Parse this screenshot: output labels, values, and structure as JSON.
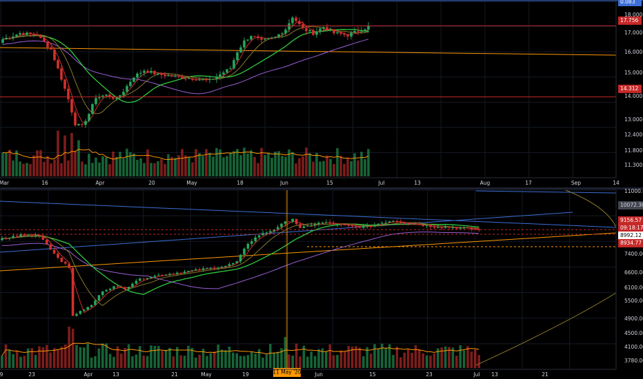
{
  "colors": {
    "background": "#000000",
    "grid": "#141a24",
    "up": "#26a65b",
    "down": "#d0312d",
    "hline": "#c62828",
    "orange": "#ff9800",
    "green_ma": "#2ecc40",
    "purple_ma": "#9c5fd6",
    "blue": "#3d6fd6",
    "axis_text": "#d1d4dc",
    "ma_olive": "#8a7a2a"
  },
  "chart_data": [
    {
      "type": "candlestick",
      "pane": "top",
      "x_ticks": [
        "Mar",
        "16",
        "Apr",
        "20",
        "May",
        "18",
        "Jun",
        "15",
        "Jul",
        "13",
        "Aug",
        "17",
        "Sep",
        "14"
      ],
      "y_ticks": [
        "18.000",
        "17.000",
        "16.000",
        "15.000",
        "14.000",
        "13.000",
        "12.400",
        "11.800",
        "11.300"
      ],
      "price_labels": [
        {
          "id": "current",
          "text": "17.756"
        },
        {
          "id": "support",
          "text": "14.312"
        },
        {
          "id": "top_edge",
          "text": "0.083"
        }
      ],
      "horizontal_levels": [
        17.756,
        14.312
      ],
      "trendline": {
        "from": 16.3,
        "to": 15.9
      },
      "candle_anchors": [
        [
          0,
          17.1
        ],
        [
          5,
          17.4
        ],
        [
          10,
          17.3
        ],
        [
          14,
          16.6
        ],
        [
          17,
          15.2
        ],
        [
          19,
          14.2
        ],
        [
          21,
          13.0
        ],
        [
          23,
          12.9
        ],
        [
          25,
          13.5
        ],
        [
          27,
          14.3
        ],
        [
          30,
          14.4
        ],
        [
          33,
          14.2
        ],
        [
          35,
          14.6
        ],
        [
          38,
          15.3
        ],
        [
          41,
          15.6
        ],
        [
          45,
          15.4
        ],
        [
          50,
          15.3
        ],
        [
          55,
          15.2
        ],
        [
          60,
          15.1
        ],
        [
          63,
          15.4
        ],
        [
          66,
          15.7
        ],
        [
          68,
          16.5
        ],
        [
          70,
          17.0
        ],
        [
          72,
          17.3
        ],
        [
          75,
          17.0
        ],
        [
          79,
          17.2
        ],
        [
          82,
          17.6
        ],
        [
          84,
          18.2
        ],
        [
          87,
          17.6
        ],
        [
          90,
          17.4
        ],
        [
          93,
          17.7
        ],
        [
          96,
          17.4
        ],
        [
          100,
          17.3
        ],
        [
          103,
          17.5
        ],
        [
          106,
          17.7
        ]
      ],
      "volume_scale": "relative"
    },
    {
      "type": "candlestick",
      "pane": "bottom",
      "x_ticks": [
        "9",
        "23",
        "Apr",
        "13",
        "21",
        "May",
        "19",
        "Jun",
        "15",
        "23",
        "Jul",
        "13",
        "21"
      ],
      "x_highlight": "11 May '20",
      "y_ticks": [
        "11000.00",
        "10072.30",
        "9156.57",
        "09:18:17",
        "8992.12",
        "8934.77",
        "7400.00",
        "6600.00",
        "6100.00",
        "5500.00",
        "4900.00",
        "4500.00",
        "4100.00",
        "3780.00"
      ],
      "price_labels": [
        {
          "id": "resistance",
          "text": "10072.30"
        },
        {
          "id": "current",
          "text": "9156.57"
        },
        {
          "id": "countdown",
          "text": "09:18:17"
        },
        {
          "id": "ma",
          "text": "8992.12"
        },
        {
          "id": "support",
          "text": "8934.77"
        }
      ],
      "horizontal_levels": [
        9156.57,
        8934.77
      ],
      "candle_anchors": [
        [
          0,
          8700
        ],
        [
          5,
          8900
        ],
        [
          10,
          8900
        ],
        [
          14,
          8000
        ],
        [
          18,
          7300
        ],
        [
          19,
          5000
        ],
        [
          21,
          5200
        ],
        [
          24,
          5500
        ],
        [
          27,
          6200
        ],
        [
          30,
          6400
        ],
        [
          33,
          6300
        ],
        [
          36,
          6700
        ],
        [
          40,
          6900
        ],
        [
          44,
          7000
        ],
        [
          48,
          7100
        ],
        [
          52,
          7200
        ],
        [
          56,
          7300
        ],
        [
          60,
          7400
        ],
        [
          63,
          7600
        ],
        [
          66,
          8500
        ],
        [
          69,
          8900
        ],
        [
          72,
          9100
        ],
        [
          76,
          9500
        ],
        [
          78,
          9700
        ],
        [
          80,
          9200
        ],
        [
          83,
          9400
        ],
        [
          86,
          9500
        ],
        [
          90,
          9400
        ],
        [
          94,
          9300
        ],
        [
          98,
          9300
        ],
        [
          102,
          9500
        ],
        [
          105,
          9600
        ],
        [
          108,
          9500
        ],
        [
          112,
          9400
        ],
        [
          116,
          9300
        ],
        [
          119,
          9300
        ],
        [
          122,
          9250
        ],
        [
          125,
          9200
        ],
        [
          128,
          9150
        ]
      ],
      "volume_scale": "relative"
    }
  ]
}
